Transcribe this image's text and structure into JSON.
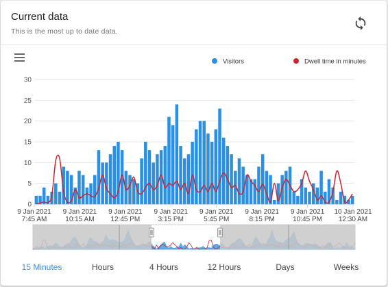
{
  "header": {
    "title": "Current data",
    "subtitle": "This is the most up to date data.",
    "refresh_icon": "refresh-icon"
  },
  "menu_icon": "hamburger-menu-icon",
  "colors": {
    "visitors": "#2b8fe2",
    "dwell": "#c9252f",
    "active_tab": "#3a8ee6",
    "navigator_mask": "#c8c8c8"
  },
  "tabs": [
    {
      "label": "15 Minutes",
      "active": true
    },
    {
      "label": "Hours",
      "active": false
    },
    {
      "label": "4 Hours",
      "active": false
    },
    {
      "label": "12 Hours",
      "active": false
    },
    {
      "label": "Days",
      "active": false
    },
    {
      "label": "Weeks",
      "active": false
    }
  ],
  "chart_data": {
    "type": "bar",
    "title": "",
    "xlabel": "",
    "ylabel": "",
    "ylim": [
      0,
      30
    ],
    "yticks": [
      0,
      5,
      10,
      15,
      20,
      25,
      30
    ],
    "legend_position": "top-right",
    "grid": true,
    "x_tick_labels": [
      [
        "9 Jan 2021",
        "7:45 AM"
      ],
      [
        "9 Jan 2021",
        "10:15 AM"
      ],
      [
        "9 Jan 2021",
        "12:45 PM"
      ],
      [
        "9 Jan 2021",
        "3:15 PM"
      ],
      [
        "9 Jan 2021",
        "5:45 PM"
      ],
      [
        "9 Jan 2021",
        "8:15 PM"
      ],
      [
        "9 Jan 2021",
        "10:45 PM"
      ],
      [
        "10 Jan 2021",
        "12:30 AM"
      ]
    ],
    "series": [
      {
        "name": "Visitors",
        "type": "bar",
        "values": [
          2,
          2,
          4,
          2,
          3,
          5,
          3,
          9,
          8,
          7,
          4,
          8,
          7,
          4,
          5,
          7,
          13,
          10,
          10,
          12,
          14,
          15,
          13,
          8,
          7,
          6,
          5,
          11,
          15,
          13,
          10,
          12,
          13,
          14,
          21,
          19,
          24,
          14,
          11,
          12,
          15,
          18,
          20,
          20,
          17,
          15,
          18,
          23,
          16,
          14,
          12,
          8,
          11,
          9,
          7,
          6,
          6,
          9,
          12,
          8,
          7,
          1,
          5,
          7,
          8,
          9,
          3,
          2,
          6,
          4,
          3,
          5,
          4,
          8,
          3,
          6,
          4,
          1,
          3,
          2,
          1,
          2
        ],
        "x_start": "9 Jan 2021 7:45 AM",
        "interval_minutes": 15
      },
      {
        "name": "Dwell time in minutes",
        "type": "line",
        "values": [
          0,
          0.3,
          0.5,
          0.4,
          2,
          10.5,
          11,
          3,
          0.5,
          0.8,
          3.5,
          1.5,
          2,
          2.5,
          2,
          1.8,
          3.8,
          7,
          3.7,
          2.5,
          1.5,
          3,
          7,
          3.5,
          4.5,
          6.5,
          3,
          2.5,
          4,
          5,
          3.5,
          4.5,
          7,
          4,
          5,
          4.5,
          5.5,
          3.5,
          5,
          2.5,
          7,
          3.5,
          3,
          4.5,
          3,
          5,
          3,
          5.5,
          7.5,
          6,
          4,
          4.5,
          2.5,
          3,
          7,
          5.5,
          4.5,
          3,
          4.8,
          2.5,
          0.5,
          5,
          0.8,
          4,
          6,
          4.5,
          3,
          3.5,
          5,
          8,
          5.5,
          3.5,
          1,
          2,
          0.5,
          0.5,
          3,
          8,
          5,
          0.5,
          1,
          2.5
        ]
      }
    ]
  }
}
